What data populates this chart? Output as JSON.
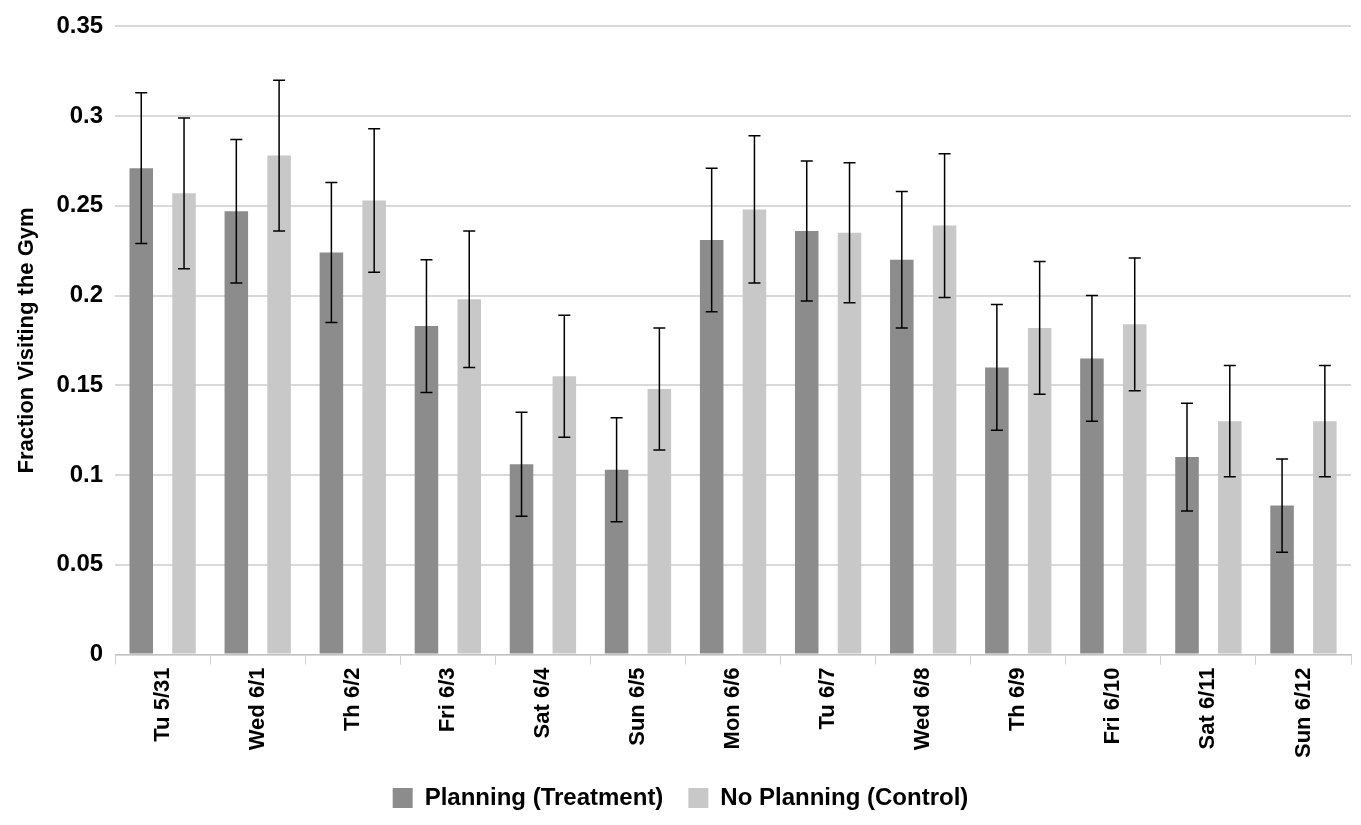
{
  "chart_data": {
    "type": "bar",
    "ylabel": "Fraction Visiting the Gym",
    "categories": [
      "Tu 5/31",
      "Wed 6/1",
      "Th 6/2",
      "Fri 6/3",
      "Sat 6/4",
      "Sun 6/5",
      "Mon 6/6",
      "Tu 6/7",
      "Wed 6/8",
      "Th 6/9",
      "Fri 6/10",
      "Sat 6/11",
      "Sun 6/12"
    ],
    "series": [
      {
        "name": "Planning (Treatment)",
        "color": "#8c8c8c",
        "values": [
          0.271,
          0.247,
          0.224,
          0.183,
          0.106,
          0.103,
          0.231,
          0.236,
          0.22,
          0.16,
          0.165,
          0.11,
          0.083
        ],
        "errors": [
          0.042,
          0.04,
          0.039,
          0.037,
          0.029,
          0.029,
          0.04,
          0.039,
          0.038,
          0.035,
          0.035,
          0.03,
          0.026
        ]
      },
      {
        "name": "No Planning (Control)",
        "color": "#c8c8c8",
        "values": [
          0.257,
          0.278,
          0.253,
          0.198,
          0.155,
          0.148,
          0.248,
          0.235,
          0.239,
          0.182,
          0.184,
          0.13,
          0.13
        ],
        "errors": [
          0.042,
          0.042,
          0.04,
          0.038,
          0.034,
          0.034,
          0.041,
          0.039,
          0.04,
          0.037,
          0.037,
          0.031,
          0.031
        ]
      }
    ],
    "ylim": [
      0,
      0.35
    ],
    "yticks": [
      0,
      0.05,
      0.1,
      0.15,
      0.2,
      0.25,
      0.3,
      0.35
    ],
    "grid": "y",
    "legend": "bottom"
  }
}
